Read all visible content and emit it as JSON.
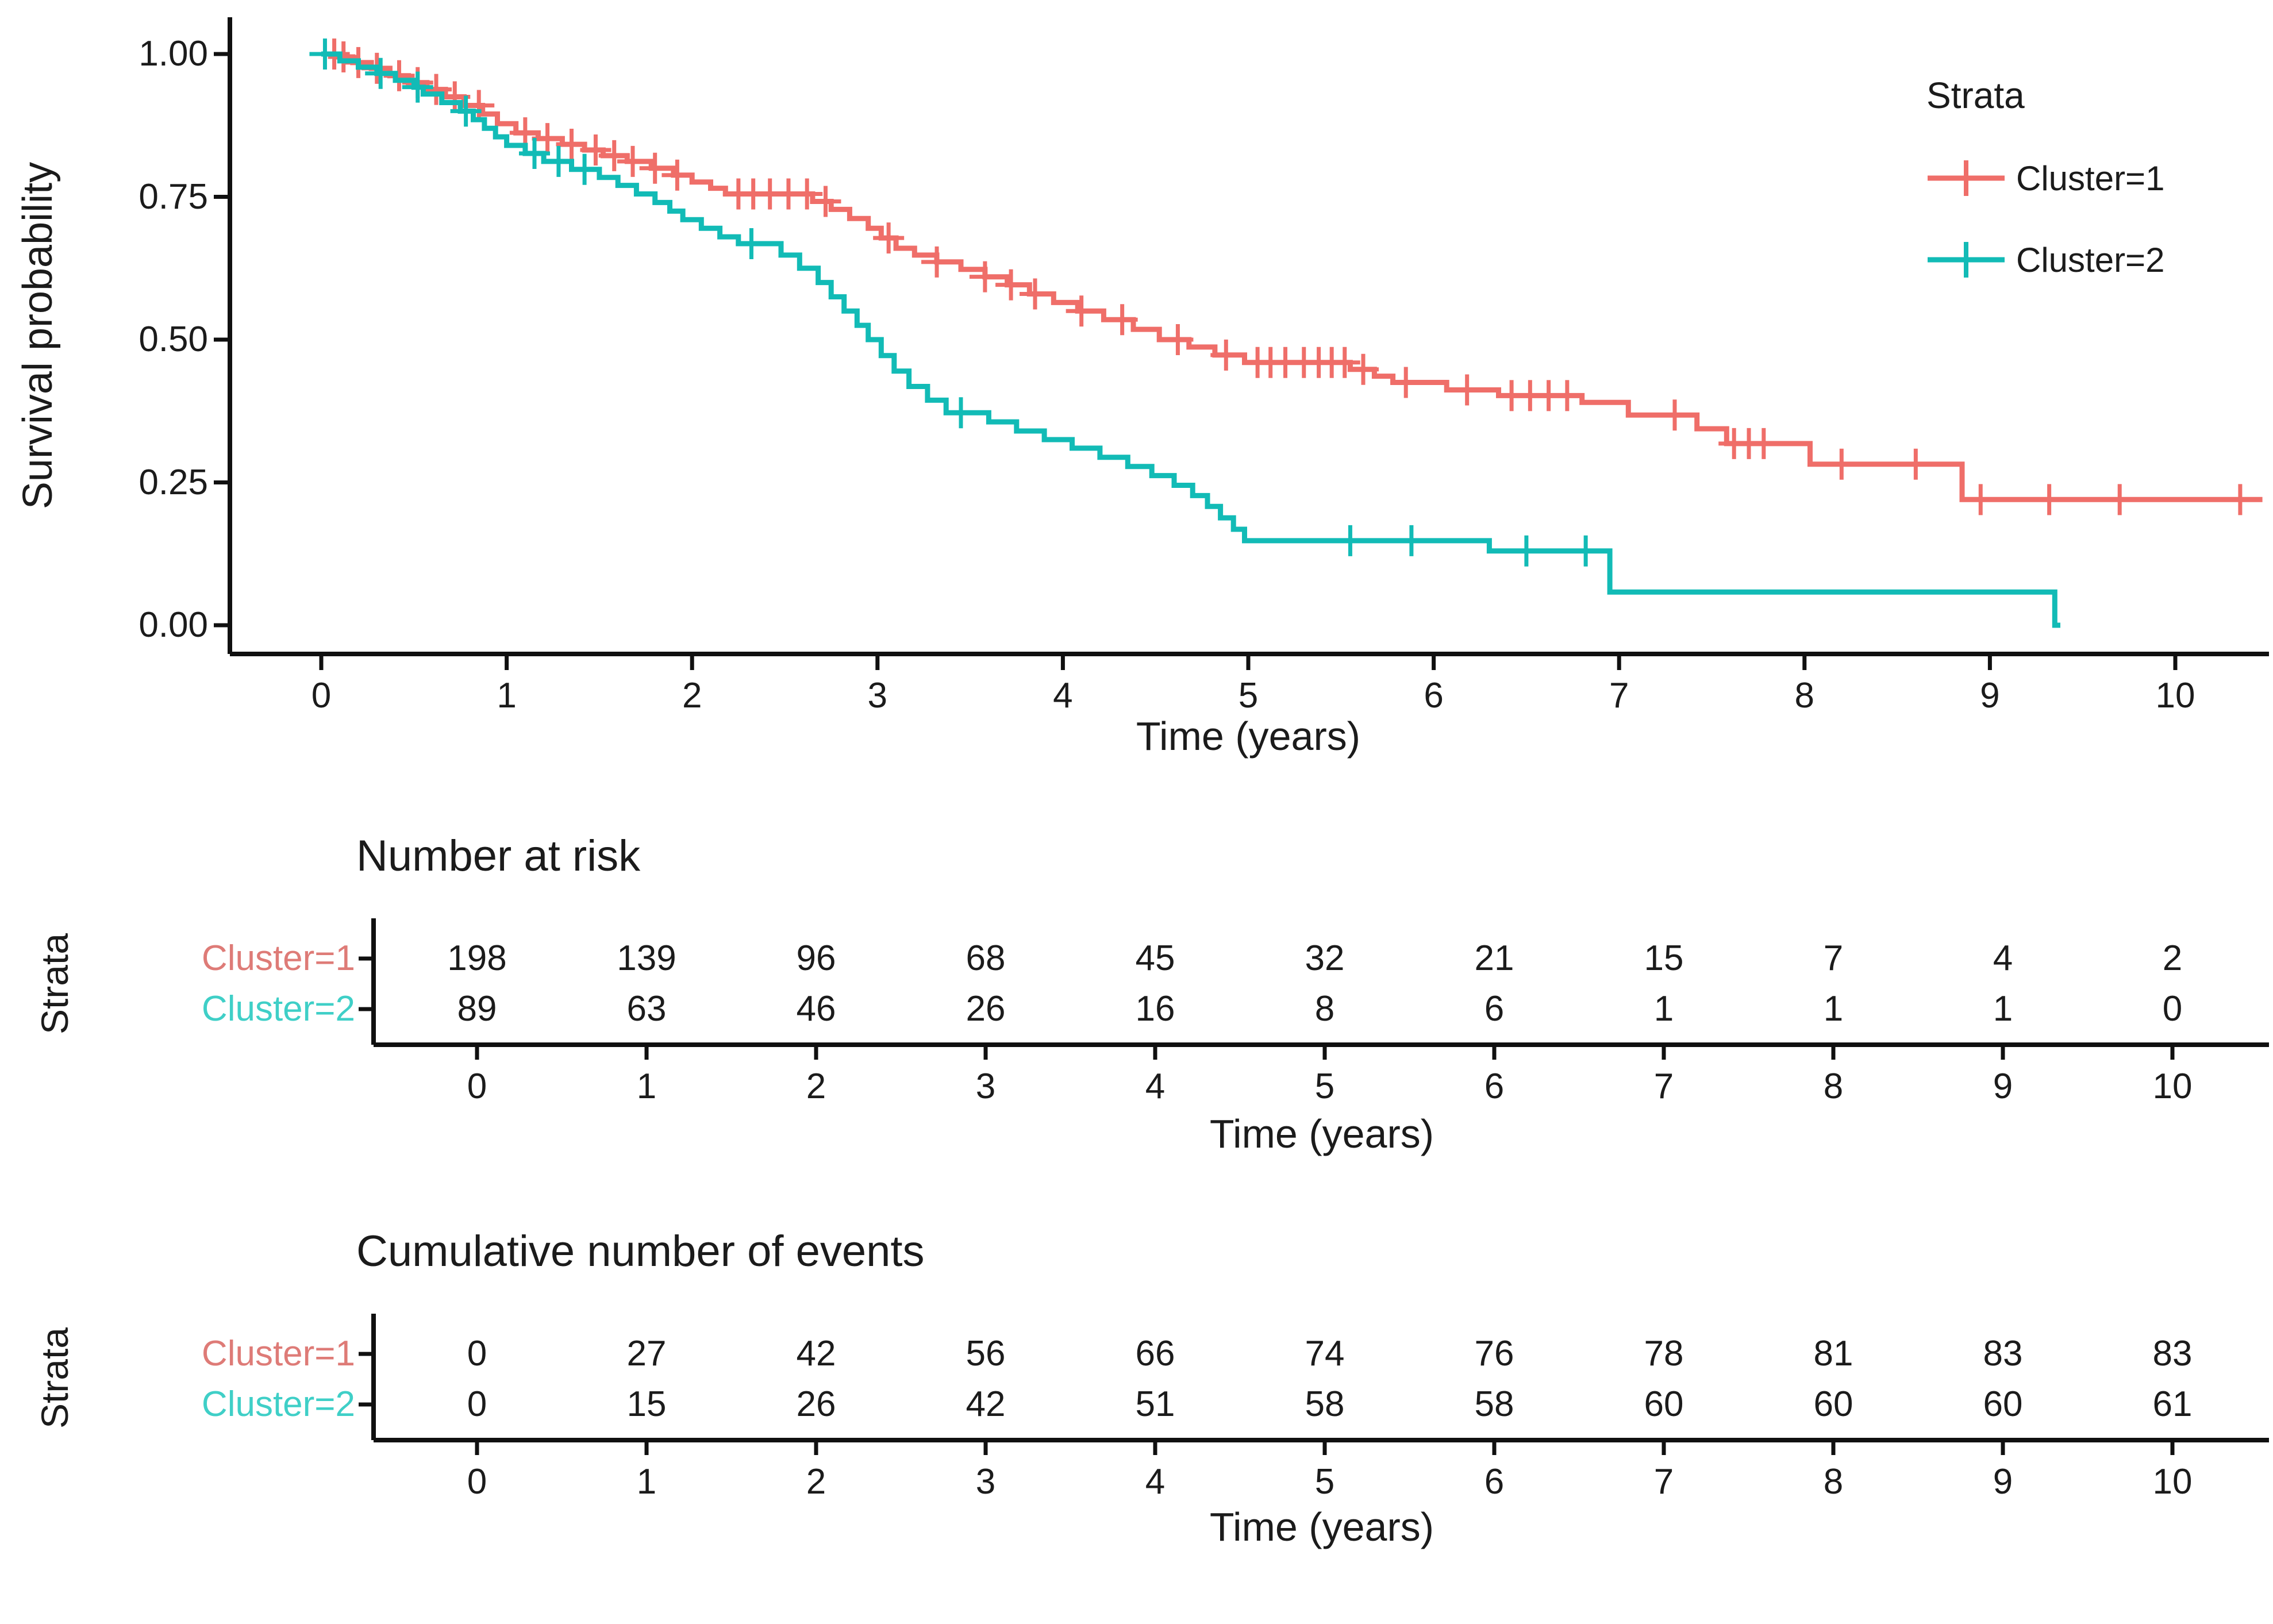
{
  "chart_data": [
    {
      "type": "line",
      "subtype": "kaplan-meier-step",
      "title": "",
      "xlabel": "Time (years)",
      "ylabel": "Survival probability",
      "legend_title": "Strata",
      "legend_position": "top-right-inside",
      "grid": false,
      "xlim": [
        -0.5,
        10.9
      ],
      "ylim": [
        0,
        1
      ],
      "xticks": [
        "0",
        "1",
        "2",
        "3",
        "4",
        "5",
        "6",
        "7",
        "8",
        "9",
        "10"
      ],
      "yticks": [
        "1.00",
        "0.75",
        "0.50",
        "0.25",
        "0.00"
      ],
      "series": [
        {
          "name": "Cluster=1",
          "color": "#EF6E69",
          "end": 10.47,
          "steps": [
            [
              0,
              1
            ],
            [
              0.08,
              0.995
            ],
            [
              0.17,
              0.985
            ],
            [
              0.27,
              0.975
            ],
            [
              0.37,
              0.962
            ],
            [
              0.47,
              0.95
            ],
            [
              0.57,
              0.938
            ],
            [
              0.67,
              0.925
            ],
            [
              0.77,
              0.91
            ],
            [
              0.87,
              0.895
            ],
            [
              0.95,
              0.878
            ],
            [
              1.05,
              0.862
            ],
            [
              1.17,
              0.852
            ],
            [
              1.3,
              0.842
            ],
            [
              1.42,
              0.832
            ],
            [
              1.52,
              0.822
            ],
            [
              1.65,
              0.812
            ],
            [
              1.78,
              0.8
            ],
            [
              1.9,
              0.788
            ],
            [
              2,
              0.776
            ],
            [
              2.1,
              0.765
            ],
            [
              2.18,
              0.755
            ],
            [
              2.65,
              0.742
            ],
            [
              2.75,
              0.728
            ],
            [
              2.85,
              0.712
            ],
            [
              2.95,
              0.695
            ],
            [
              3.02,
              0.678
            ],
            [
              3.1,
              0.66
            ],
            [
              3.2,
              0.648
            ],
            [
              3.32,
              0.636
            ],
            [
              3.45,
              0.623
            ],
            [
              3.58,
              0.61
            ],
            [
              3.7,
              0.596
            ],
            [
              3.82,
              0.58
            ],
            [
              3.95,
              0.565
            ],
            [
              4.08,
              0.55
            ],
            [
              4.22,
              0.535
            ],
            [
              4.38,
              0.518
            ],
            [
              4.52,
              0.5
            ],
            [
              4.68,
              0.487
            ],
            [
              4.82,
              0.473
            ],
            [
              4.98,
              0.46
            ],
            [
              5.55,
              0.448
            ],
            [
              5.68,
              0.436
            ],
            [
              5.78,
              0.425
            ],
            [
              6.07,
              0.412
            ],
            [
              6.35,
              0.402
            ],
            [
              6.8,
              0.39
            ],
            [
              7.05,
              0.368
            ],
            [
              7.42,
              0.344
            ],
            [
              7.58,
              0.318
            ],
            [
              8.03,
              0.282
            ],
            [
              8.85,
              0.22
            ]
          ],
          "censor_times": [
            0.07,
            0.12,
            0.2,
            0.3,
            0.42,
            0.52,
            0.62,
            0.72,
            0.85,
            1.1,
            1.22,
            1.35,
            1.48,
            1.58,
            1.68,
            1.8,
            1.92,
            2.25,
            2.33,
            2.42,
            2.52,
            2.62,
            2.72,
            3.06,
            3.32,
            3.58,
            3.72,
            3.85,
            4.1,
            4.32,
            4.62,
            4.88,
            5.05,
            5.12,
            5.2,
            5.3,
            5.38,
            5.45,
            5.52,
            5.62,
            5.85,
            6.18,
            6.42,
            6.52,
            6.62,
            6.72,
            7.3,
            7.62,
            7.7,
            7.78,
            8.2,
            8.6,
            8.95,
            9.32,
            9.7,
            10.35
          ]
        },
        {
          "name": "Cluster=2",
          "color": "#12BBB6",
          "end": 9.38,
          "steps": [
            [
              0,
              1
            ],
            [
              0.1,
              0.988
            ],
            [
              0.2,
              0.977
            ],
            [
              0.3,
              0.966
            ],
            [
              0.4,
              0.954
            ],
            [
              0.5,
              0.942
            ],
            [
              0.55,
              0.93
            ],
            [
              0.65,
              0.915
            ],
            [
              0.75,
              0.9
            ],
            [
              0.82,
              0.885
            ],
            [
              0.88,
              0.87
            ],
            [
              0.94,
              0.855
            ],
            [
              1,
              0.84
            ],
            [
              1.1,
              0.826
            ],
            [
              1.2,
              0.812
            ],
            [
              1.35,
              0.798
            ],
            [
              1.5,
              0.784
            ],
            [
              1.6,
              0.77
            ],
            [
              1.7,
              0.755
            ],
            [
              1.8,
              0.74
            ],
            [
              1.88,
              0.725
            ],
            [
              1.95,
              0.71
            ],
            [
              2.05,
              0.695
            ],
            [
              2.15,
              0.68
            ],
            [
              2.25,
              0.668
            ],
            [
              2.48,
              0.648
            ],
            [
              2.58,
              0.625
            ],
            [
              2.68,
              0.6
            ],
            [
              2.75,
              0.575
            ],
            [
              2.82,
              0.55
            ],
            [
              2.89,
              0.525
            ],
            [
              2.95,
              0.5
            ],
            [
              3.02,
              0.472
            ],
            [
              3.09,
              0.445
            ],
            [
              3.17,
              0.418
            ],
            [
              3.27,
              0.394
            ],
            [
              3.37,
              0.372
            ],
            [
              3.6,
              0.356
            ],
            [
              3.75,
              0.34
            ],
            [
              3.9,
              0.325
            ],
            [
              4.05,
              0.31
            ],
            [
              4.2,
              0.294
            ],
            [
              4.35,
              0.278
            ],
            [
              4.48,
              0.262
            ],
            [
              4.6,
              0.245
            ],
            [
              4.7,
              0.227
            ],
            [
              4.78,
              0.208
            ],
            [
              4.85,
              0.188
            ],
            [
              4.92,
              0.168
            ],
            [
              4.98,
              0.148
            ],
            [
              6.3,
              0.13
            ],
            [
              6.95,
              0.058
            ],
            [
              9.35,
              0
            ]
          ],
          "censor_times": [
            0.02,
            0.32,
            0.52,
            0.78,
            1.15,
            1.28,
            1.42,
            2.32,
            3.45,
            5.55,
            5.88,
            6.5,
            6.82
          ]
        }
      ]
    },
    {
      "type": "table",
      "title": "Number at risk",
      "xlabel": "Time (years)",
      "ylabel": "Strata",
      "xticks": [
        "0",
        "1",
        "2",
        "3",
        "4",
        "5",
        "6",
        "7",
        "8",
        "9",
        "10"
      ],
      "rows": [
        {
          "name": "Cluster=1",
          "color": "#DE7B77",
          "values": [
            "198",
            "139",
            "96",
            "68",
            "45",
            "32",
            "21",
            "15",
            "7",
            "4",
            "2"
          ]
        },
        {
          "name": "Cluster=2",
          "color": "#3FCFC7",
          "values": [
            "89",
            "63",
            "46",
            "26",
            "16",
            "8",
            "6",
            "1",
            "1",
            "1",
            "0"
          ]
        }
      ]
    },
    {
      "type": "table",
      "title": "Cumulative number of events",
      "xlabel": "Time (years)",
      "ylabel": "Strata",
      "xticks": [
        "0",
        "1",
        "2",
        "3",
        "4",
        "5",
        "6",
        "7",
        "8",
        "9",
        "10"
      ],
      "rows": [
        {
          "name": "Cluster=1",
          "color": "#DE7B77",
          "values": [
            "0",
            "27",
            "42",
            "56",
            "66",
            "74",
            "76",
            "78",
            "81",
            "83",
            "83"
          ]
        },
        {
          "name": "Cluster=2",
          "color": "#3FCFC7",
          "values": [
            "0",
            "15",
            "26",
            "42",
            "51",
            "58",
            "58",
            "60",
            "60",
            "60",
            "61"
          ]
        }
      ]
    }
  ],
  "colors": {
    "cluster1_curve": "#EF6E69",
    "cluster2_curve": "#12BBB6",
    "cluster1_label": "#DE7B77",
    "cluster2_label": "#3FCFC7",
    "axis": "#101010",
    "text": "#1b1b1b",
    "background": "#ffffff"
  }
}
